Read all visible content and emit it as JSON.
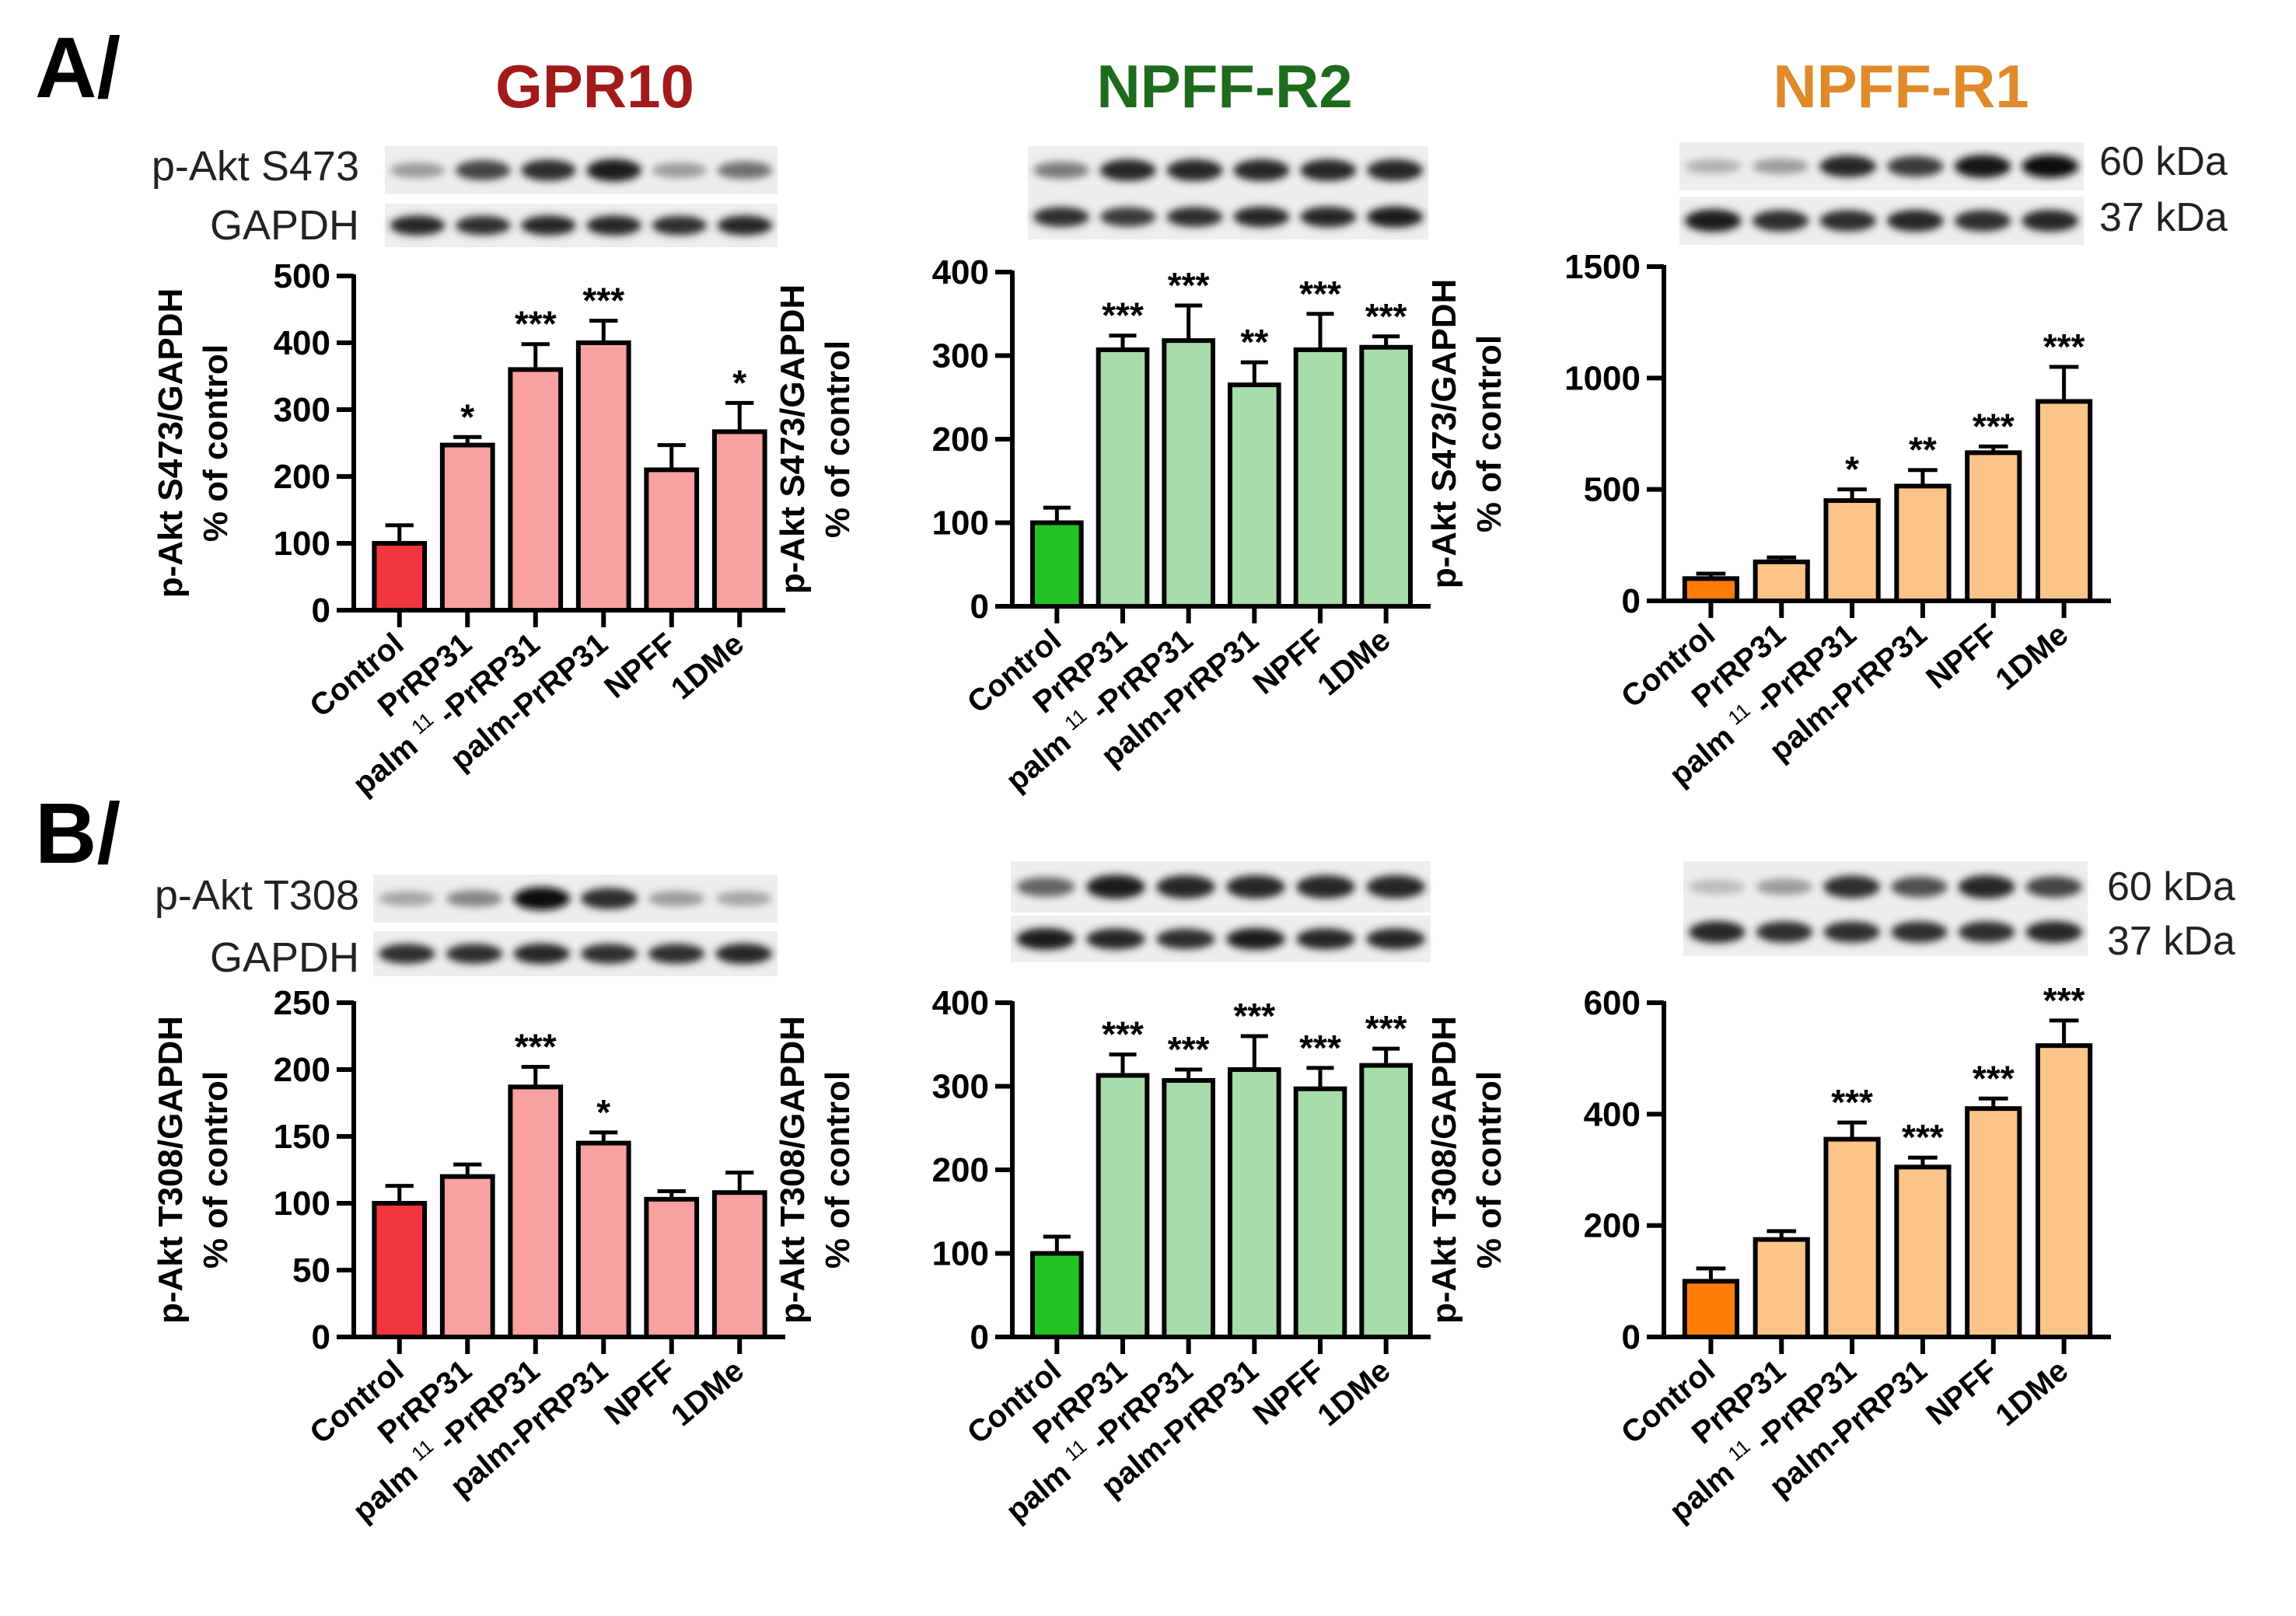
{
  "figure": {
    "panel_letters": [
      "A/",
      "B/"
    ],
    "column_titles": [
      {
        "text": "GPR10",
        "color": "#a31a1a"
      },
      {
        "text": "NPFF-R2",
        "color": "#1e6b1e"
      },
      {
        "text": "NPFF-R1",
        "color": "#e08a2a"
      }
    ],
    "blot_labels": {
      "A": {
        "top": "p-Akt S473",
        "bottom": "GAPDH"
      },
      "B": {
        "top": "p-Akt T308",
        "bottom": "GAPDH"
      }
    },
    "kda_labels": {
      "top": "60 kDa",
      "bottom": "37 kDa"
    },
    "colors": {
      "gpr10_control": "#f0363f",
      "gpr10_treat": "#f7a1a1",
      "r2_control": "#22c322",
      "r2_treat": "#a8dcaa",
      "r1_control": "#ff7c0a",
      "r1_treat": "#fbc58a"
    }
  },
  "chart_data": [
    {
      "type": "bar",
      "id": "A-GPR10",
      "title": "GPR10",
      "ylabel": "p-Akt S473/GAPDH",
      "ylabel2": "% of control",
      "categories": [
        "Control",
        "PrRP31",
        "palm11-PrRP31",
        "palm-PrRP31",
        "NPFF",
        "1DMe"
      ],
      "category_labels": [
        [
          "Control"
        ],
        [
          "PrRP31"
        ],
        [
          "palm",
          "11",
          "-PrRP31"
        ],
        [
          "palm-PrRP31"
        ],
        [
          "NPFF"
        ],
        [
          "1DMe"
        ]
      ],
      "values": [
        100,
        247,
        360,
        400,
        210,
        267
      ],
      "errors": [
        27,
        12,
        38,
        33,
        37,
        43
      ],
      "significance": [
        "",
        "*",
        "***",
        "***",
        "",
        "*"
      ],
      "ylim": [
        0,
        500
      ],
      "yticks": [
        "0",
        "100",
        "200",
        "300",
        "400",
        "500"
      ]
    },
    {
      "type": "bar",
      "id": "A-NPFF-R2",
      "title": "NPFF-R2",
      "ylabel": "p-Akt S473/GAPDH",
      "ylabel2": "% of control",
      "categories": [
        "Control",
        "PrRP31",
        "palm11-PrRP31",
        "palm-PrRP31",
        "NPFF",
        "1DMe"
      ],
      "category_labels": [
        [
          "Control"
        ],
        [
          "PrRP31"
        ],
        [
          "palm",
          "11",
          "-PrRP31"
        ],
        [
          "palm-PrRP31"
        ],
        [
          "NPFF"
        ],
        [
          "1DMe"
        ]
      ],
      "values": [
        100,
        307,
        318,
        265,
        307,
        310
      ],
      "errors": [
        18,
        17,
        42,
        27,
        43,
        13
      ],
      "significance": [
        "",
        "***",
        "***",
        "**",
        "***",
        "***"
      ],
      "ylim": [
        0,
        400
      ],
      "yticks": [
        "0",
        "100",
        "200",
        "300",
        "400"
      ]
    },
    {
      "type": "bar",
      "id": "A-NPFF-R1",
      "title": "NPFF-R1",
      "ylabel": "p-Akt S473/GAPDH",
      "ylabel2": "% of control",
      "categories": [
        "Control",
        "PrRP31",
        "palm11-PrRP31",
        "palm-PrRP31",
        "NPFF",
        "1DMe"
      ],
      "category_labels": [
        [
          "Control"
        ],
        [
          "PrRP31"
        ],
        [
          "palm",
          "11",
          "-PrRP31"
        ],
        [
          "palm-PrRP31"
        ],
        [
          "NPFF"
        ],
        [
          "1DMe"
        ]
      ],
      "values": [
        100,
        175,
        450,
        515,
        665,
        895
      ],
      "errors": [
        22,
        20,
        50,
        72,
        28,
        155
      ],
      "significance": [
        "",
        "",
        "*",
        "**",
        "***",
        "***"
      ],
      "ylim": [
        0,
        1500
      ],
      "yticks": [
        "0",
        "500",
        "1000",
        "1500"
      ]
    },
    {
      "type": "bar",
      "id": "B-GPR10",
      "title": "GPR10",
      "ylabel": "p-Akt T308/GAPDH",
      "ylabel2": "% of control",
      "categories": [
        "Control",
        "PrRP31",
        "palm11-PrRP31",
        "palm-PrRP31",
        "NPFF",
        "1DMe"
      ],
      "category_labels": [
        [
          "Control"
        ],
        [
          "PrRP31"
        ],
        [
          "palm",
          "11",
          "-PrRP31"
        ],
        [
          "palm-PrRP31"
        ],
        [
          "NPFF"
        ],
        [
          "1DMe"
        ]
      ],
      "values": [
        100,
        120,
        187,
        145,
        103,
        108
      ],
      "errors": [
        13,
        9,
        15,
        8,
        6,
        15
      ],
      "significance": [
        "",
        "",
        "***",
        "*",
        "",
        ""
      ],
      "ylim": [
        0,
        250
      ],
      "yticks": [
        "0",
        "50",
        "100",
        "150",
        "200",
        "250"
      ]
    },
    {
      "type": "bar",
      "id": "B-NPFF-R2",
      "title": "NPFF-R2",
      "ylabel": "p-Akt T308/GAPDH",
      "ylabel2": "% of control",
      "categories": [
        "Control",
        "PrRP31",
        "palm11-PrRP31",
        "palm-PrRP31",
        "NPFF",
        "1DMe"
      ],
      "category_labels": [
        [
          "Control"
        ],
        [
          "PrRP31"
        ],
        [
          "palm",
          "11",
          "-PrRP31"
        ],
        [
          "palm-PrRP31"
        ],
        [
          "NPFF"
        ],
        [
          "1DMe"
        ]
      ],
      "values": [
        100,
        313,
        307,
        320,
        297,
        325
      ],
      "errors": [
        20,
        25,
        13,
        40,
        25,
        20
      ],
      "significance": [
        "",
        "***",
        "***",
        "***",
        "***",
        "***"
      ],
      "ylim": [
        0,
        400
      ],
      "yticks": [
        "0",
        "100",
        "200",
        "300",
        "400"
      ]
    },
    {
      "type": "bar",
      "id": "B-NPFF-R1",
      "title": "NPFF-R1",
      "ylabel": "p-Akt T308/GAPDH",
      "ylabel2": "% of control",
      "categories": [
        "Control",
        "PrRP31",
        "palm11-PrRP31",
        "palm-PrRP31",
        "NPFF",
        "1DMe"
      ],
      "category_labels": [
        [
          "Control"
        ],
        [
          "PrRP31"
        ],
        [
          "palm",
          "11",
          "-PrRP31"
        ],
        [
          "palm-PrRP31"
        ],
        [
          "NPFF"
        ],
        [
          "1DMe"
        ]
      ],
      "values": [
        100,
        175,
        355,
        305,
        410,
        523
      ],
      "errors": [
        23,
        15,
        30,
        17,
        18,
        45
      ],
      "significance": [
        "",
        "",
        "***",
        "***",
        "***",
        "***"
      ],
      "ylim": [
        0,
        600
      ],
      "yticks": [
        "0",
        "200",
        "400",
        "600"
      ]
    }
  ]
}
